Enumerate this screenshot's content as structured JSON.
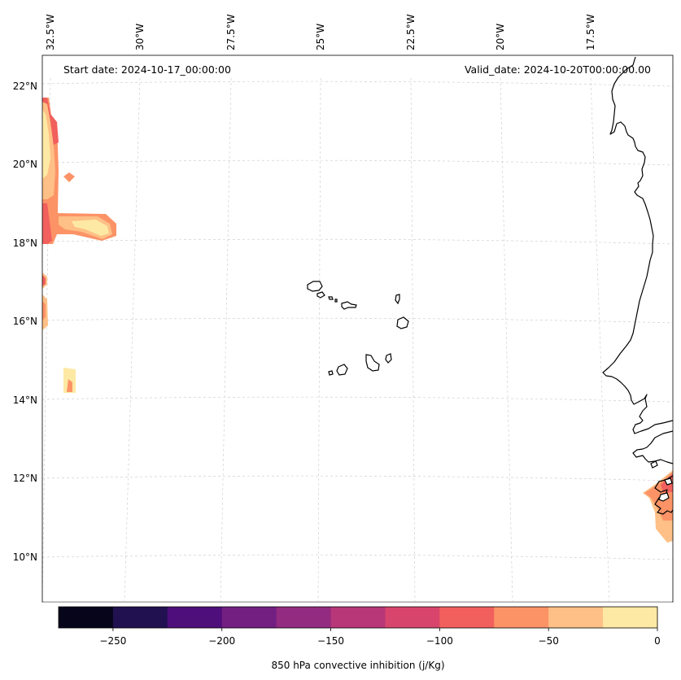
{
  "header": {
    "start_date": "Start date: 2024-10-17_00:00:00",
    "valid_date": "Valid_date: 2024-10-20T00:00:00.00"
  },
  "lon_labels": [
    "32.5°W",
    "30°W",
    "27.5°W",
    "25°W",
    "22.5°W",
    "20°W",
    "17.5°W"
  ],
  "lat_labels": [
    "22°N",
    "20°N",
    "18°N",
    "16°N",
    "14°N",
    "12°N",
    "10°N"
  ],
  "colorbar": {
    "label": "850 hPa convective inhibition (j/Kg)",
    "tick_labels": [
      "−250",
      "−200",
      "−150",
      "−100",
      "−50",
      "0"
    ],
    "range": [
      -275,
      0
    ],
    "levels": [
      -275,
      -250,
      -225,
      -200,
      -175,
      -150,
      -125,
      -100,
      -75,
      -50,
      -25,
      0
    ],
    "colors": [
      "#06051a",
      "#221150",
      "#4f0f7b",
      "#721f81",
      "#932b80",
      "#b73779",
      "#d8456c",
      "#f1605d",
      "#fc9366",
      "#fec086",
      "#fde9a3"
    ]
  },
  "colors": {
    "axis": "#000000",
    "grid": "#c8c8c8",
    "coastline": "#000000"
  }
}
